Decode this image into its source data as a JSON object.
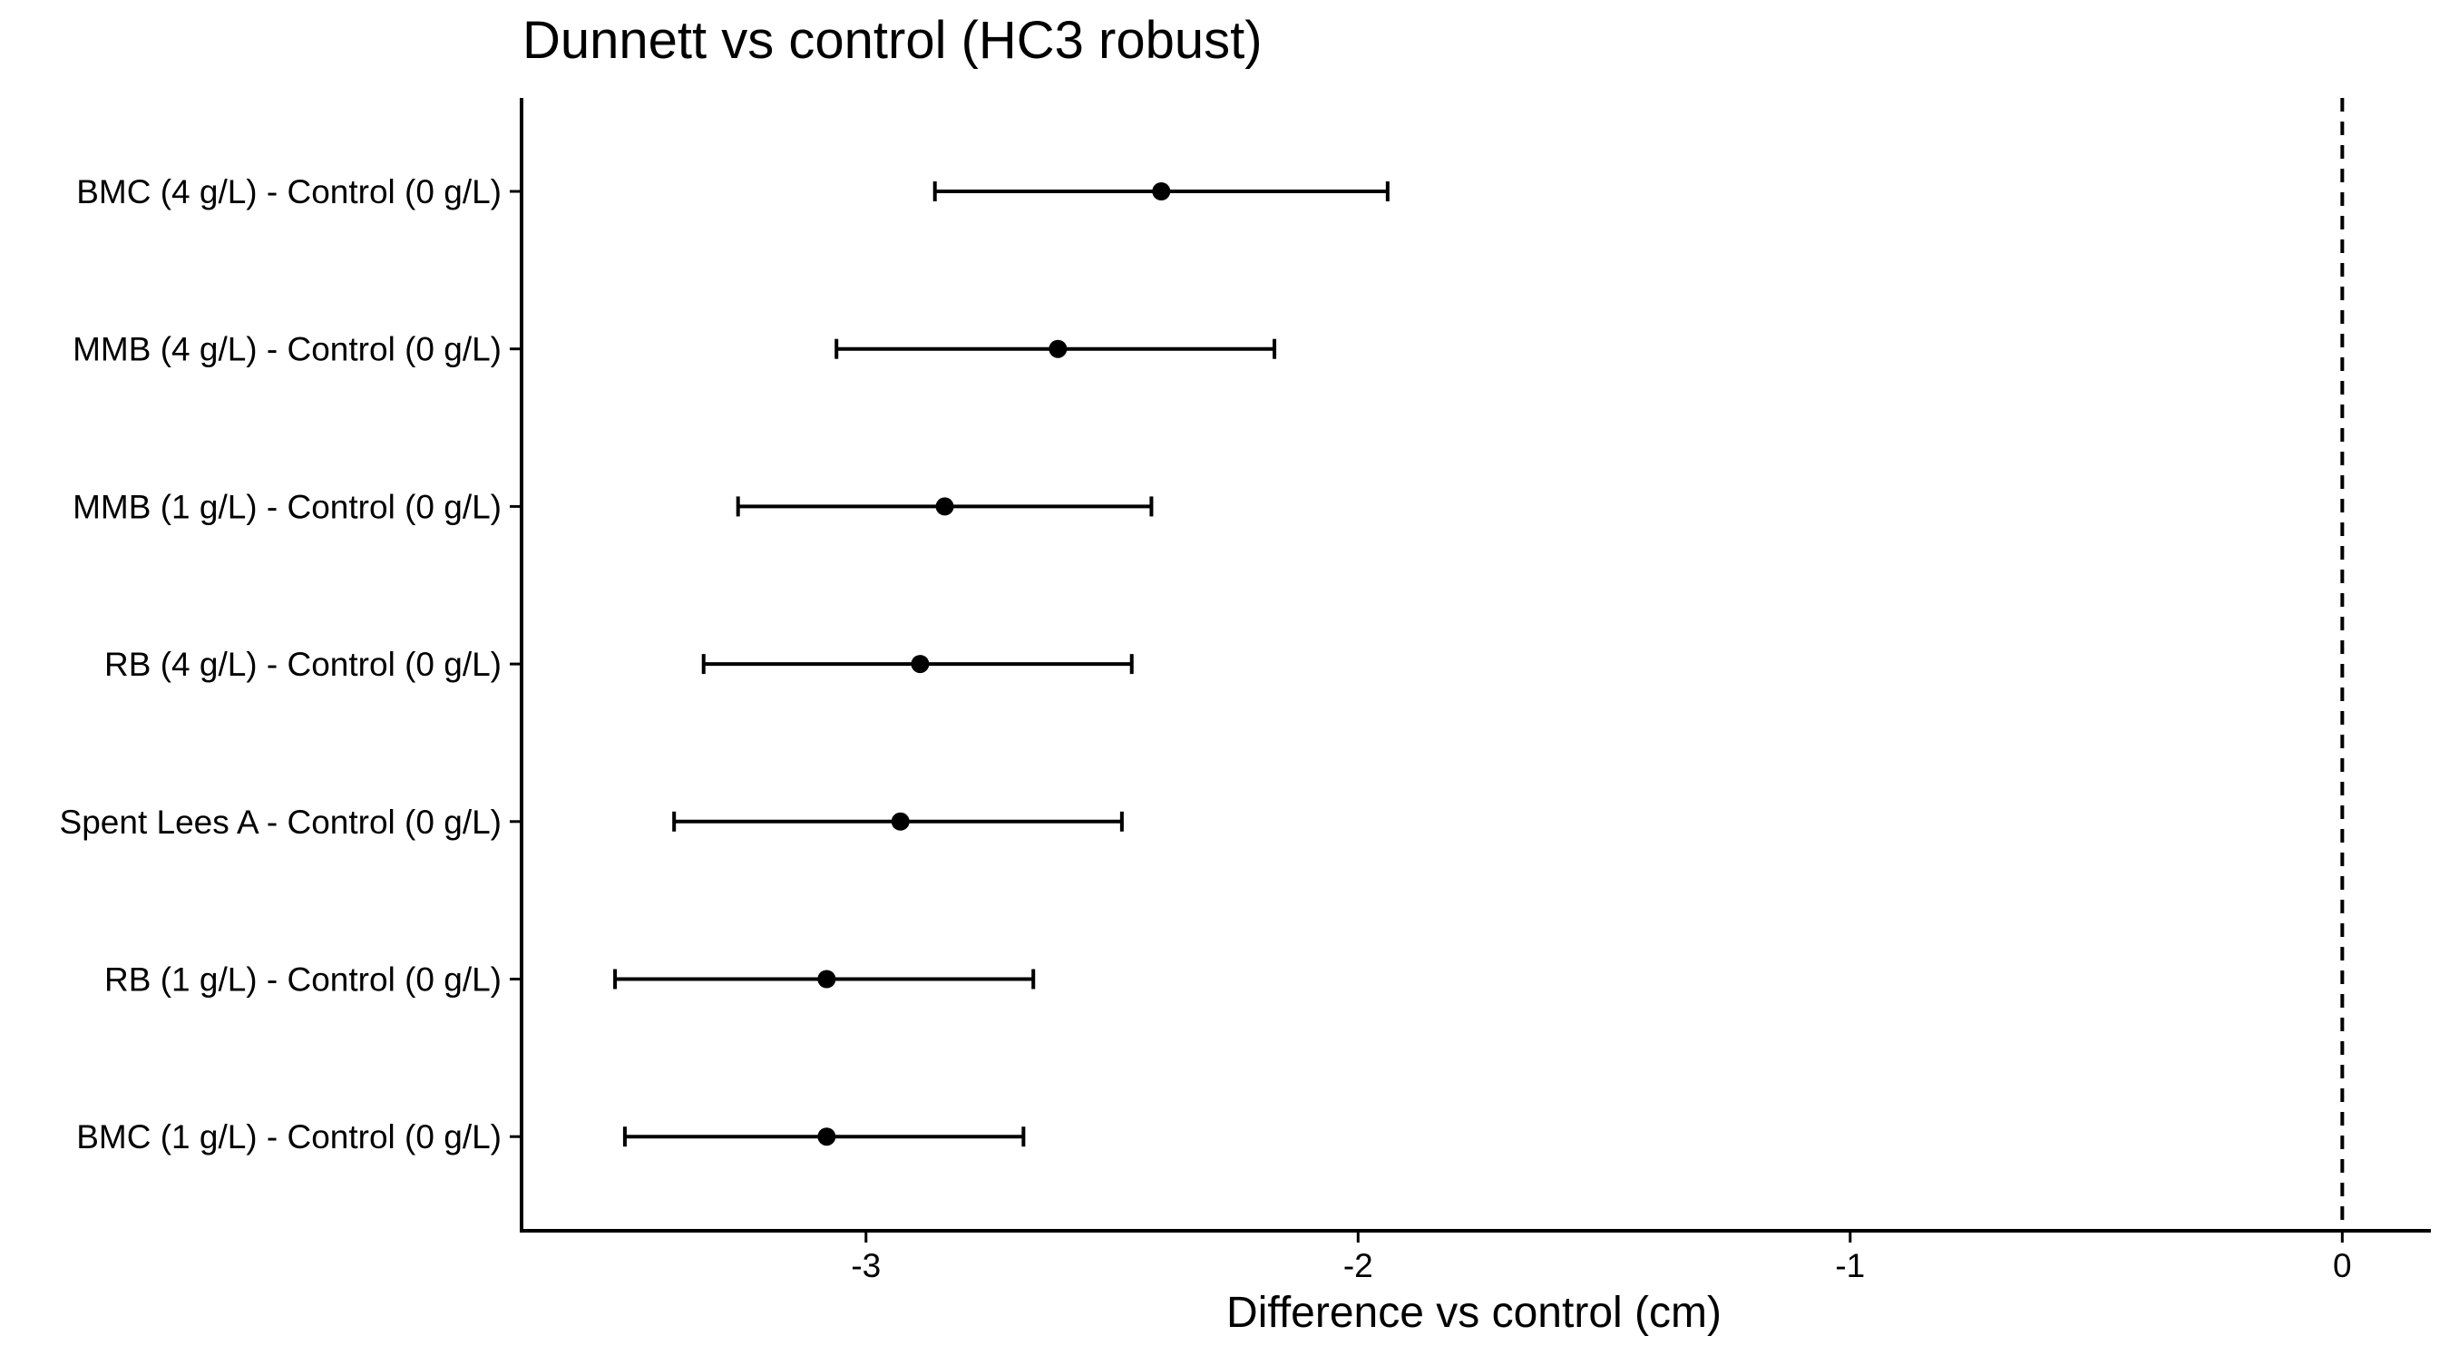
{
  "chart_data": {
    "type": "errorbar",
    "title": "Dunnett vs control (HC3 robust)",
    "xlabel": "Difference vs control (cm)",
    "ylabel": "",
    "xlim": [
      -3.7,
      0.18
    ],
    "x_ticks": [
      -3,
      -2,
      -1,
      0
    ],
    "x_tick_labels": [
      "-3",
      "-2",
      "-1",
      "0"
    ],
    "reference_line": {
      "x": 0,
      "style": "dashed"
    },
    "grid": false,
    "legend": "none",
    "colors": {
      "marks": "#000000",
      "background": "#ffffff"
    },
    "categories": [
      "BMC (4 g/L) - Control (0 g/L)",
      "MMB (4 g/L) - Control (0 g/L)",
      "MMB (1 g/L) - Control (0 g/L)",
      "RB (4 g/L) - Control (0 g/L)",
      "Spent Lees A - Control (0 g/L)",
      "RB (1 g/L) - Control (0 g/L)",
      "BMC (1 g/L) - Control (0 g/L)"
    ],
    "estimate": [
      -2.4,
      -2.61,
      -2.84,
      -2.89,
      -2.93,
      -3.08,
      -3.08
    ],
    "lower": [
      -2.86,
      -3.06,
      -3.26,
      -3.33,
      -3.39,
      -3.51,
      -3.49
    ],
    "upper": [
      -1.94,
      -2.17,
      -2.42,
      -2.46,
      -2.48,
      -2.66,
      -2.68
    ]
  }
}
